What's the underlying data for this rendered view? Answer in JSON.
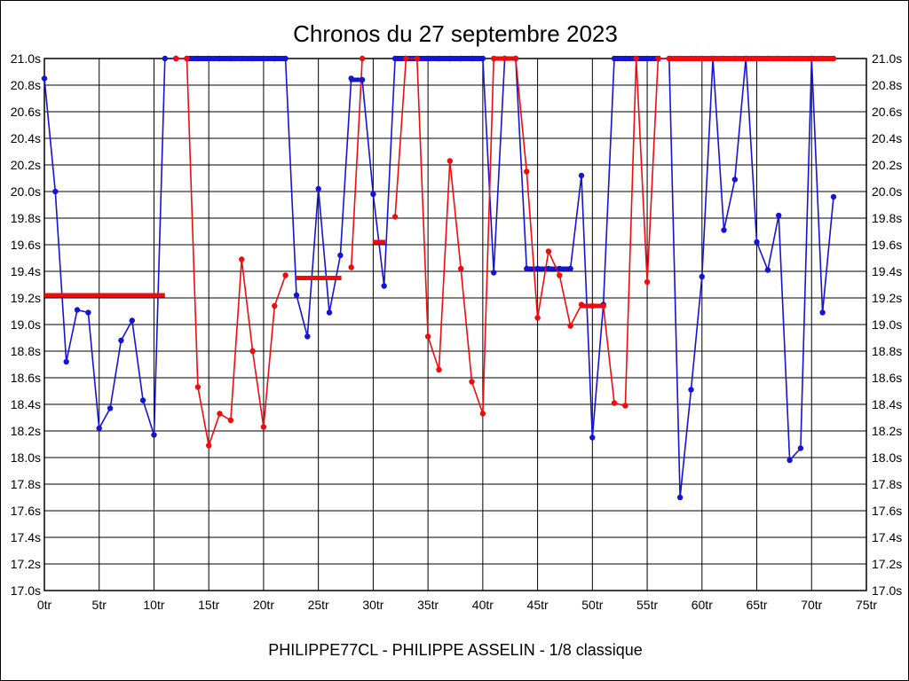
{
  "page": {
    "title": "Chronos du 27 septembre 2023",
    "footer": "PHILIPPE77CL - PHILIPPE ASSELIN - 1/8 classique"
  },
  "chart_data": {
    "type": "line",
    "title": "Chronos du 27 septembre 2023",
    "subtitle": "PHILIPPE77CL - PHILIPPE ASSELIN - 1/8 classique",
    "grid": true,
    "legend": "none",
    "x_axis": {
      "unit": "tr",
      "min": 0,
      "max": 75,
      "tick_step": 5,
      "tick_labels": [
        "0tr",
        "5tr",
        "10tr",
        "15tr",
        "20tr",
        "25tr",
        "30tr",
        "35tr",
        "40tr",
        "45tr",
        "50tr",
        "55tr",
        "60tr",
        "65tr",
        "70tr",
        "75tr"
      ]
    },
    "y_axis": {
      "unit": "s",
      "min": 17.0,
      "max": 21.0,
      "tick_step": 0.2,
      "labels_on_both_sides": true,
      "tick_labels": [
        "21.0s",
        "20.8s",
        "20.6s",
        "20.4s",
        "20.2s",
        "20.0s",
        "19.8s",
        "19.6s",
        "19.4s",
        "19.2s",
        "19.0s",
        "18.8s",
        "18.6s",
        "18.4s",
        "18.2s",
        "18.0s",
        "17.8s",
        "17.6s",
        "17.4s",
        "17.2s",
        "17.0s"
      ]
    },
    "colors": {
      "blue": "#1414d2",
      "red": "#ee0c0c",
      "grid": "#000000"
    },
    "series": [
      {
        "name": "serie-bleue",
        "color_key": "blue",
        "pieces": [
          [
            [
              0,
              20.85
            ],
            [
              1,
              20.0
            ],
            [
              2,
              18.72
            ],
            [
              3,
              19.11
            ],
            [
              4,
              19.09
            ],
            [
              5,
              18.22
            ],
            [
              6,
              18.37
            ],
            [
              7,
              18.88
            ],
            [
              8,
              19.03
            ],
            [
              9,
              18.43
            ],
            [
              10,
              18.17
            ],
            [
              11,
              21.0
            ],
            [
              12,
              21.0
            ],
            [
              13,
              21.0
            ],
            [
              14,
              21.0
            ],
            [
              15,
              21.0
            ],
            [
              16,
              21.0
            ],
            [
              17,
              21.0
            ],
            [
              18,
              21.0
            ],
            [
              19,
              21.0
            ],
            [
              20,
              21.0
            ],
            [
              21,
              21.0
            ],
            [
              22,
              21.0
            ],
            [
              23,
              19.22
            ],
            [
              24,
              18.91
            ],
            [
              25,
              20.02
            ],
            [
              26,
              19.09
            ],
            [
              27,
              19.52
            ],
            [
              28,
              20.85
            ],
            [
              29,
              20.84
            ],
            [
              30,
              19.98
            ],
            [
              31,
              19.29
            ],
            [
              32,
              21.0
            ],
            [
              33,
              21.0
            ],
            [
              34,
              21.0
            ],
            [
              35,
              21.0
            ],
            [
              36,
              21.0
            ],
            [
              37,
              21.0
            ],
            [
              38,
              21.0
            ],
            [
              39,
              21.0
            ],
            [
              40,
              21.0
            ],
            [
              41,
              19.39
            ],
            [
              42,
              21.0
            ],
            [
              43,
              21.0
            ],
            [
              44,
              19.42
            ],
            [
              45,
              19.42
            ],
            [
              46,
              19.42
            ],
            [
              47,
              19.42
            ],
            [
              48,
              19.42
            ],
            [
              49,
              20.12
            ],
            [
              50,
              18.15
            ],
            [
              51,
              19.15
            ],
            [
              52,
              21.0
            ],
            [
              53,
              21.0
            ],
            [
              54,
              21.0
            ],
            [
              55,
              21.0
            ],
            [
              56,
              21.0
            ],
            [
              57,
              21.0
            ],
            [
              58,
              17.7
            ],
            [
              59,
              18.51
            ],
            [
              60,
              19.36
            ],
            [
              61,
              21.0
            ],
            [
              62,
              19.71
            ],
            [
              63,
              20.09
            ],
            [
              64,
              21.0
            ],
            [
              65,
              19.62
            ],
            [
              66,
              19.41
            ],
            [
              67,
              19.82
            ],
            [
              68,
              17.98
            ],
            [
              69,
              18.07
            ],
            [
              70,
              21.0
            ],
            [
              71,
              19.09
            ],
            [
              72,
              19.96
            ]
          ]
        ],
        "avg_segments": [
          {
            "from_lap": 13.0,
            "to_lap": 21.95,
            "time": 21.0,
            "w": 6
          },
          {
            "from_lap": 27.85,
            "to_lap": 29.0,
            "time": 20.84,
            "w": 5
          },
          {
            "from_lap": 31.9,
            "to_lap": 40.0,
            "time": 21.0,
            "w": 6
          },
          {
            "from_lap": 44.0,
            "to_lap": 48.0,
            "time": 19.42,
            "w": 5
          },
          {
            "from_lap": 51.9,
            "to_lap": 56.2,
            "time": 21.0,
            "w": 6
          }
        ]
      },
      {
        "name": "serie-rouge",
        "color_key": "red",
        "pieces": [
          [
            [
              12,
              21.0
            ],
            [
              13,
              21.0
            ],
            [
              14,
              18.53
            ],
            [
              15,
              18.09
            ],
            [
              16,
              18.33
            ],
            [
              17,
              18.28
            ],
            [
              18,
              19.49
            ],
            [
              19,
              18.8
            ],
            [
              20,
              18.23
            ],
            [
              21,
              19.14
            ],
            [
              22,
              19.37
            ]
          ],
          [
            [
              28,
              19.43
            ],
            [
              29,
              21.0
            ]
          ],
          [
            [
              32,
              19.81
            ],
            [
              33,
              21.0
            ],
            [
              34,
              21.0
            ],
            [
              35,
              18.91
            ],
            [
              36,
              18.66
            ],
            [
              37,
              20.23
            ],
            [
              38,
              19.42
            ],
            [
              39,
              18.57
            ],
            [
              40,
              18.33
            ],
            [
              41,
              21.0
            ],
            [
              42,
              21.0
            ],
            [
              43,
              21.0
            ],
            [
              44,
              20.15
            ],
            [
              45,
              19.05
            ],
            [
              46,
              19.55
            ],
            [
              47,
              19.37
            ],
            [
              48,
              18.99
            ],
            [
              49,
              19.15
            ],
            [
              50,
              19.14
            ],
            [
              51,
              19.14
            ],
            [
              52,
              18.41
            ],
            [
              53,
              18.39
            ],
            [
              54,
              21.0
            ],
            [
              55,
              19.32
            ],
            [
              56,
              21.0
            ],
            [
              57,
              21.0
            ],
            [
              58,
              21.0
            ],
            [
              59,
              21.0
            ],
            [
              60,
              21.0
            ],
            [
              61,
              21.0
            ],
            [
              62,
              21.0
            ],
            [
              63,
              21.0
            ],
            [
              64,
              21.0
            ],
            [
              65,
              21.0
            ],
            [
              66,
              21.0
            ],
            [
              67,
              21.0
            ],
            [
              68,
              21.0
            ],
            [
              69,
              21.0
            ],
            [
              70,
              21.0
            ],
            [
              71,
              21.0
            ],
            [
              72,
              21.0
            ]
          ]
        ],
        "avg_segments": [
          {
            "from_lap": 0.0,
            "to_lap": 11.0,
            "time": 19.22,
            "w": 5
          },
          {
            "from_lap": 23.0,
            "to_lap": 27.1,
            "time": 19.35,
            "w": 5
          },
          {
            "from_lap": 29.95,
            "to_lap": 31.1,
            "time": 19.62,
            "w": 5
          },
          {
            "from_lap": 41.0,
            "to_lap": 43.2,
            "time": 21.0,
            "w": 5
          },
          {
            "from_lap": 48.9,
            "to_lap": 51.2,
            "time": 19.14,
            "w": 5
          },
          {
            "from_lap": 56.9,
            "to_lap": 71.9,
            "time": 21.0,
            "w": 6
          }
        ]
      }
    ]
  }
}
